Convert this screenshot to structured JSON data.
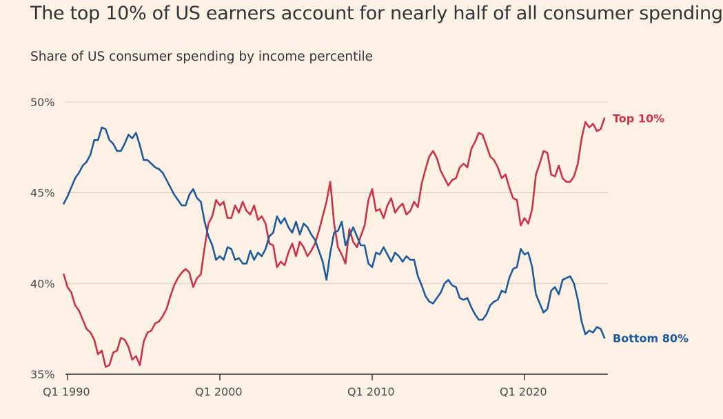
{
  "title": "The top 10% of US earners account for nearly half of all consumer spending",
  "subtitle": "Share of US consumer spending by income percentile",
  "chart_data": {
    "type": "line",
    "xlabel": "",
    "ylabel": "",
    "ylim": [
      35,
      50
    ],
    "xlim": [
      1989.75,
      2025.4
    ],
    "y_ticks": [
      {
        "value": 50,
        "label": "50%"
      },
      {
        "value": 45,
        "label": "45%"
      },
      {
        "value": 40,
        "label": "40%"
      },
      {
        "value": 35,
        "label": "35%"
      }
    ],
    "x_ticks": [
      {
        "value": 1990,
        "label": "Q1 1990"
      },
      {
        "value": 2000,
        "label": "Q1 2000"
      },
      {
        "value": 2010,
        "label": "Q1 2010"
      },
      {
        "value": 2020,
        "label": "Q1 2020"
      }
    ],
    "grid": true,
    "series": [
      {
        "name": "Top 10%",
        "color": "#c8334a",
        "points": [
          [
            1989.75,
            40.5
          ],
          [
            1990.0,
            39.8
          ],
          [
            1990.25,
            39.5
          ],
          [
            1990.5,
            38.8
          ],
          [
            1990.75,
            38.5
          ],
          [
            1991.0,
            38.0
          ],
          [
            1991.25,
            37.5
          ],
          [
            1991.5,
            37.3
          ],
          [
            1991.75,
            36.9
          ],
          [
            1992.0,
            36.1
          ],
          [
            1992.25,
            36.3
          ],
          [
            1992.5,
            35.4
          ],
          [
            1992.75,
            35.5
          ],
          [
            1993.0,
            36.2
          ],
          [
            1993.25,
            36.3
          ],
          [
            1993.5,
            37.0
          ],
          [
            1993.75,
            36.9
          ],
          [
            1994.0,
            36.5
          ],
          [
            1994.25,
            35.8
          ],
          [
            1994.5,
            36.0
          ],
          [
            1994.75,
            35.5
          ],
          [
            1995.0,
            36.8
          ],
          [
            1995.25,
            37.3
          ],
          [
            1995.5,
            37.4
          ],
          [
            1995.75,
            37.8
          ],
          [
            1996.0,
            37.9
          ],
          [
            1996.25,
            38.2
          ],
          [
            1996.5,
            38.6
          ],
          [
            1996.75,
            39.3
          ],
          [
            1997.0,
            39.9
          ],
          [
            1997.25,
            40.3
          ],
          [
            1997.5,
            40.6
          ],
          [
            1997.75,
            40.8
          ],
          [
            1998.0,
            40.6
          ],
          [
            1998.25,
            39.8
          ],
          [
            1998.5,
            40.3
          ],
          [
            1998.75,
            40.5
          ],
          [
            1999.0,
            42.0
          ],
          [
            1999.25,
            43.3
          ],
          [
            1999.5,
            43.7
          ],
          [
            1999.75,
            44.6
          ],
          [
            2000.0,
            44.3
          ],
          [
            2000.25,
            44.5
          ],
          [
            2000.5,
            43.6
          ],
          [
            2000.75,
            43.6
          ],
          [
            2001.0,
            44.3
          ],
          [
            2001.25,
            43.9
          ],
          [
            2001.5,
            44.5
          ],
          [
            2001.75,
            44.0
          ],
          [
            2002.0,
            43.8
          ],
          [
            2002.25,
            44.3
          ],
          [
            2002.5,
            43.5
          ],
          [
            2002.75,
            43.7
          ],
          [
            2003.0,
            43.3
          ],
          [
            2003.25,
            42.2
          ],
          [
            2003.5,
            42.1
          ],
          [
            2003.75,
            40.9
          ],
          [
            2004.0,
            41.2
          ],
          [
            2004.25,
            41.0
          ],
          [
            2004.5,
            41.7
          ],
          [
            2004.75,
            42.2
          ],
          [
            2005.0,
            41.5
          ],
          [
            2005.25,
            42.3
          ],
          [
            2005.5,
            42.0
          ],
          [
            2005.75,
            41.5
          ],
          [
            2006.0,
            41.8
          ],
          [
            2006.25,
            42.2
          ],
          [
            2006.5,
            42.9
          ],
          [
            2006.75,
            43.7
          ],
          [
            2007.0,
            44.5
          ],
          [
            2007.25,
            45.6
          ],
          [
            2007.5,
            43.3
          ],
          [
            2007.75,
            42.0
          ],
          [
            2008.0,
            41.6
          ],
          [
            2008.25,
            41.1
          ],
          [
            2008.5,
            43.0
          ],
          [
            2008.75,
            42.3
          ],
          [
            2009.0,
            42.0
          ],
          [
            2009.25,
            42.6
          ],
          [
            2009.5,
            43.2
          ],
          [
            2009.75,
            44.6
          ],
          [
            2010.0,
            45.2
          ],
          [
            2010.25,
            44.0
          ],
          [
            2010.5,
            44.1
          ],
          [
            2010.75,
            43.6
          ],
          [
            2011.0,
            44.3
          ],
          [
            2011.25,
            44.7
          ],
          [
            2011.5,
            43.9
          ],
          [
            2011.75,
            44.2
          ],
          [
            2012.0,
            44.4
          ],
          [
            2012.25,
            43.8
          ],
          [
            2012.5,
            44.0
          ],
          [
            2012.75,
            44.5
          ],
          [
            2013.0,
            44.2
          ],
          [
            2013.25,
            45.5
          ],
          [
            2013.5,
            46.3
          ],
          [
            2013.75,
            47.0
          ],
          [
            2014.0,
            47.3
          ],
          [
            2014.25,
            46.9
          ],
          [
            2014.5,
            46.2
          ],
          [
            2014.75,
            45.8
          ],
          [
            2015.0,
            45.4
          ],
          [
            2015.25,
            45.7
          ],
          [
            2015.5,
            45.8
          ],
          [
            2015.75,
            46.4
          ],
          [
            2016.0,
            46.6
          ],
          [
            2016.25,
            46.4
          ],
          [
            2016.5,
            47.4
          ],
          [
            2016.75,
            47.8
          ],
          [
            2017.0,
            48.3
          ],
          [
            2017.25,
            48.2
          ],
          [
            2017.5,
            47.6
          ],
          [
            2017.75,
            47.0
          ],
          [
            2018.0,
            46.8
          ],
          [
            2018.25,
            46.4
          ],
          [
            2018.5,
            45.8
          ],
          [
            2018.75,
            46.0
          ],
          [
            2019.0,
            45.3
          ],
          [
            2019.25,
            44.7
          ],
          [
            2019.5,
            44.6
          ],
          [
            2019.75,
            43.2
          ],
          [
            2020.0,
            43.6
          ],
          [
            2020.25,
            43.3
          ],
          [
            2020.5,
            44.1
          ],
          [
            2020.75,
            46.0
          ],
          [
            2021.0,
            46.6
          ],
          [
            2021.25,
            47.3
          ],
          [
            2021.5,
            47.2
          ],
          [
            2021.75,
            46.0
          ],
          [
            2022.0,
            45.9
          ],
          [
            2022.25,
            46.5
          ],
          [
            2022.5,
            45.8
          ],
          [
            2022.75,
            45.6
          ],
          [
            2023.0,
            45.6
          ],
          [
            2023.25,
            45.9
          ],
          [
            2023.5,
            46.6
          ],
          [
            2023.75,
            48.0
          ],
          [
            2024.0,
            48.9
          ],
          [
            2024.25,
            48.6
          ],
          [
            2024.5,
            48.8
          ],
          [
            2024.75,
            48.4
          ],
          [
            2025.0,
            48.5
          ],
          [
            2025.25,
            49.1
          ]
        ]
      },
      {
        "name": "Bottom 80%",
        "color": "#1e5a99",
        "points": [
          [
            1989.75,
            44.4
          ],
          [
            1990.0,
            44.8
          ],
          [
            1990.25,
            45.3
          ],
          [
            1990.5,
            45.8
          ],
          [
            1990.75,
            46.1
          ],
          [
            1991.0,
            46.5
          ],
          [
            1991.25,
            46.7
          ],
          [
            1991.5,
            47.1
          ],
          [
            1991.75,
            47.9
          ],
          [
            1992.0,
            47.9
          ],
          [
            1992.25,
            48.6
          ],
          [
            1992.5,
            48.5
          ],
          [
            1992.75,
            47.9
          ],
          [
            1993.0,
            47.7
          ],
          [
            1993.25,
            47.3
          ],
          [
            1993.5,
            47.3
          ],
          [
            1993.75,
            47.7
          ],
          [
            1994.0,
            48.2
          ],
          [
            1994.25,
            48.0
          ],
          [
            1994.5,
            48.3
          ],
          [
            1994.75,
            47.6
          ],
          [
            1995.0,
            46.8
          ],
          [
            1995.25,
            46.8
          ],
          [
            1995.5,
            46.6
          ],
          [
            1995.75,
            46.4
          ],
          [
            1996.0,
            46.3
          ],
          [
            1996.25,
            46.1
          ],
          [
            1996.5,
            45.7
          ],
          [
            1996.75,
            45.3
          ],
          [
            1997.0,
            44.9
          ],
          [
            1997.25,
            44.6
          ],
          [
            1997.5,
            44.3
          ],
          [
            1997.75,
            44.3
          ],
          [
            1998.0,
            44.9
          ],
          [
            1998.25,
            45.2
          ],
          [
            1998.5,
            44.7
          ],
          [
            1998.75,
            44.5
          ],
          [
            1999.0,
            43.4
          ],
          [
            1999.25,
            42.6
          ],
          [
            1999.5,
            42.1
          ],
          [
            1999.75,
            41.3
          ],
          [
            2000.0,
            41.5
          ],
          [
            2000.25,
            41.3
          ],
          [
            2000.5,
            42.0
          ],
          [
            2000.75,
            41.9
          ],
          [
            2001.0,
            41.3
          ],
          [
            2001.25,
            41.4
          ],
          [
            2001.5,
            41.1
          ],
          [
            2001.75,
            41.1
          ],
          [
            2002.0,
            41.8
          ],
          [
            2002.25,
            41.3
          ],
          [
            2002.5,
            41.7
          ],
          [
            2002.75,
            41.5
          ],
          [
            2003.0,
            41.9
          ],
          [
            2003.25,
            42.6
          ],
          [
            2003.5,
            42.8
          ],
          [
            2003.75,
            43.7
          ],
          [
            2004.0,
            43.3
          ],
          [
            2004.25,
            43.6
          ],
          [
            2004.5,
            43.1
          ],
          [
            2004.75,
            42.8
          ],
          [
            2005.0,
            43.4
          ],
          [
            2005.25,
            42.7
          ],
          [
            2005.5,
            43.3
          ],
          [
            2005.75,
            43.1
          ],
          [
            2006.0,
            42.7
          ],
          [
            2006.25,
            42.4
          ],
          [
            2006.5,
            41.8
          ],
          [
            2006.75,
            41.2
          ],
          [
            2007.0,
            40.2
          ],
          [
            2007.25,
            41.7
          ],
          [
            2007.5,
            42.8
          ],
          [
            2007.75,
            42.9
          ],
          [
            2008.0,
            43.4
          ],
          [
            2008.25,
            42.1
          ],
          [
            2008.5,
            42.6
          ],
          [
            2008.75,
            43.1
          ],
          [
            2009.0,
            42.6
          ],
          [
            2009.25,
            42.1
          ],
          [
            2009.5,
            42.1
          ],
          [
            2009.75,
            41.1
          ],
          [
            2010.0,
            40.9
          ],
          [
            2010.25,
            41.7
          ],
          [
            2010.5,
            41.6
          ],
          [
            2010.75,
            42.0
          ],
          [
            2011.0,
            41.6
          ],
          [
            2011.25,
            41.2
          ],
          [
            2011.5,
            41.7
          ],
          [
            2011.75,
            41.5
          ],
          [
            2012.0,
            41.2
          ],
          [
            2012.25,
            41.5
          ],
          [
            2012.5,
            41.3
          ],
          [
            2012.75,
            41.3
          ],
          [
            2013.0,
            40.4
          ],
          [
            2013.25,
            39.9
          ],
          [
            2013.5,
            39.3
          ],
          [
            2013.75,
            39.0
          ],
          [
            2014.0,
            38.9
          ],
          [
            2014.25,
            39.2
          ],
          [
            2014.5,
            39.5
          ],
          [
            2014.75,
            40.0
          ],
          [
            2015.0,
            40.2
          ],
          [
            2015.25,
            39.9
          ],
          [
            2015.5,
            39.8
          ],
          [
            2015.75,
            39.2
          ],
          [
            2016.0,
            39.1
          ],
          [
            2016.25,
            39.2
          ],
          [
            2016.5,
            38.7
          ],
          [
            2016.75,
            38.3
          ],
          [
            2017.0,
            38.0
          ],
          [
            2017.25,
            38.0
          ],
          [
            2017.5,
            38.3
          ],
          [
            2017.75,
            38.8
          ],
          [
            2018.0,
            39.0
          ],
          [
            2018.25,
            39.1
          ],
          [
            2018.5,
            39.6
          ],
          [
            2018.75,
            39.5
          ],
          [
            2019.0,
            40.3
          ],
          [
            2019.25,
            40.8
          ],
          [
            2019.5,
            40.9
          ],
          [
            2019.75,
            41.9
          ],
          [
            2020.0,
            41.6
          ],
          [
            2020.25,
            41.7
          ],
          [
            2020.5,
            40.9
          ],
          [
            2020.75,
            39.4
          ],
          [
            2021.0,
            38.9
          ],
          [
            2021.25,
            38.4
          ],
          [
            2021.5,
            38.6
          ],
          [
            2021.75,
            39.6
          ],
          [
            2022.0,
            39.8
          ],
          [
            2022.25,
            39.4
          ],
          [
            2022.5,
            40.2
          ],
          [
            2022.75,
            40.3
          ],
          [
            2023.0,
            40.4
          ],
          [
            2023.25,
            40.0
          ],
          [
            2023.5,
            39.1
          ],
          [
            2023.75,
            37.9
          ],
          [
            2024.0,
            37.2
          ],
          [
            2024.25,
            37.4
          ],
          [
            2024.5,
            37.3
          ],
          [
            2024.75,
            37.6
          ],
          [
            2025.0,
            37.5
          ],
          [
            2025.25,
            37.0
          ]
        ]
      }
    ]
  }
}
